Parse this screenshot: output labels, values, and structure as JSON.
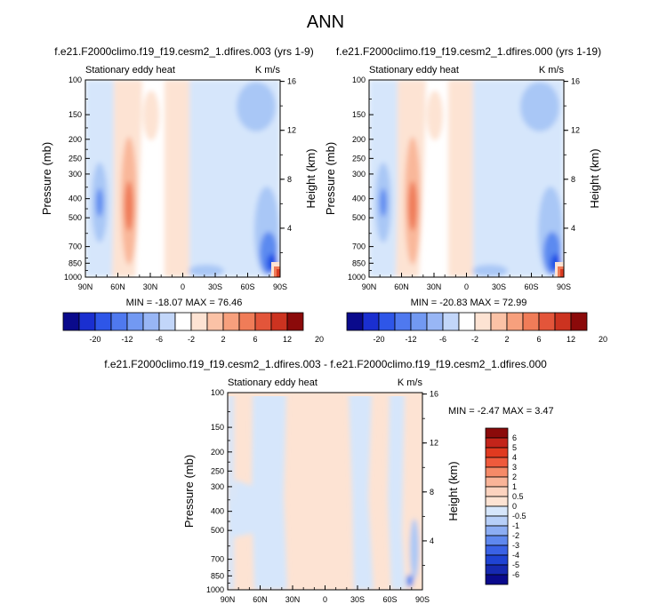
{
  "page_title": "ANN",
  "colors": {
    "dark_blue": "#0a0a8c",
    "blue": "#1f4fe6",
    "mid_blue": "#5b8af0",
    "light_blue": "#a9c7f6",
    "pale_blue": "#d6e6fb",
    "pale_orange": "#fde3d3",
    "light_orange": "#f9b79a",
    "orange": "#ef7a57",
    "red": "#d93b22",
    "dark_red": "#8b0a0a"
  },
  "chart_data": [
    {
      "type": "heatmap",
      "plot_type": "zonal-mean contour (latitude vs pressure)",
      "title": "f.e21.F2000climo.f19_f19.cesm2_1.dfires.003 (yrs 1-9)",
      "left_label": "Stationary eddy heat",
      "right_label": "K m/s",
      "ylabel": "Pressure (mb)",
      "y2label": "Height (km)",
      "x_ticks": [
        "90N",
        "60N",
        "30N",
        "0",
        "30S",
        "60S",
        "90S"
      ],
      "y_ticks": [
        "100",
        "150",
        "200",
        "250",
        "300",
        "400",
        "500",
        "700",
        "850",
        "1000"
      ],
      "y2_ticks": [
        "16",
        "12",
        "8",
        "4"
      ],
      "y_scale": "log",
      "ylim": [
        1000,
        100
      ],
      "stats_label": "MIN = -18.07  MAX = 76.46",
      "min": -18.07,
      "max": 76.46,
      "colorbar_orientation": "horizontal",
      "colorbar_labels": [
        "-20",
        "-12",
        "-6",
        "-2",
        "2",
        "6",
        "12",
        "20"
      ]
    },
    {
      "type": "heatmap",
      "plot_type": "zonal-mean contour (latitude vs pressure)",
      "title": "f.e21.F2000climo.f19_f19.cesm2_1.dfires.000 (yrs 1-19)",
      "left_label": "Stationary eddy heat",
      "right_label": "K m/s",
      "ylabel": "Pressure (mb)",
      "y2label": "Height (km)",
      "x_ticks": [
        "90N",
        "60N",
        "30N",
        "0",
        "30S",
        "60S",
        "90S"
      ],
      "y_ticks": [
        "100",
        "150",
        "200",
        "250",
        "300",
        "400",
        "500",
        "700",
        "850",
        "1000"
      ],
      "y2_ticks": [
        "16",
        "12",
        "8",
        "4"
      ],
      "y_scale": "log",
      "ylim": [
        1000,
        100
      ],
      "stats_label": "MIN = -20.83  MAX = 72.99",
      "min": -20.83,
      "max": 72.99,
      "colorbar_orientation": "horizontal",
      "colorbar_labels": [
        "-20",
        "-12",
        "-6",
        "-2",
        "2",
        "6",
        "12",
        "20"
      ]
    },
    {
      "type": "heatmap",
      "plot_type": "zonal-mean difference contour (latitude vs pressure)",
      "title": "f.e21.F2000climo.f19_f19.cesm2_1.dfires.003 - f.e21.F2000climo.f19_f19.cesm2_1.dfires.000",
      "left_label": "Stationary eddy heat",
      "right_label": "K m/s",
      "ylabel": "Pressure (mb)",
      "y2label": "Height (km)",
      "x_ticks": [
        "90N",
        "60N",
        "30N",
        "0",
        "30S",
        "60S",
        "90S"
      ],
      "y_ticks": [
        "100",
        "150",
        "200",
        "250",
        "300",
        "400",
        "500",
        "700",
        "850",
        "1000"
      ],
      "y2_ticks": [
        "16",
        "12",
        "8",
        "4"
      ],
      "y_scale": "log",
      "ylim": [
        1000,
        100
      ],
      "stats_label": "MIN =  -2.47  MAX =  3.47",
      "min": -2.47,
      "max": 3.47,
      "colorbar_orientation": "vertical",
      "colorbar_labels": [
        "6",
        "5",
        "4",
        "3",
        "2",
        "1",
        "0.5",
        "0",
        "-0.5",
        "-1",
        "-2",
        "-3",
        "-4",
        "-5",
        "-6"
      ]
    }
  ]
}
